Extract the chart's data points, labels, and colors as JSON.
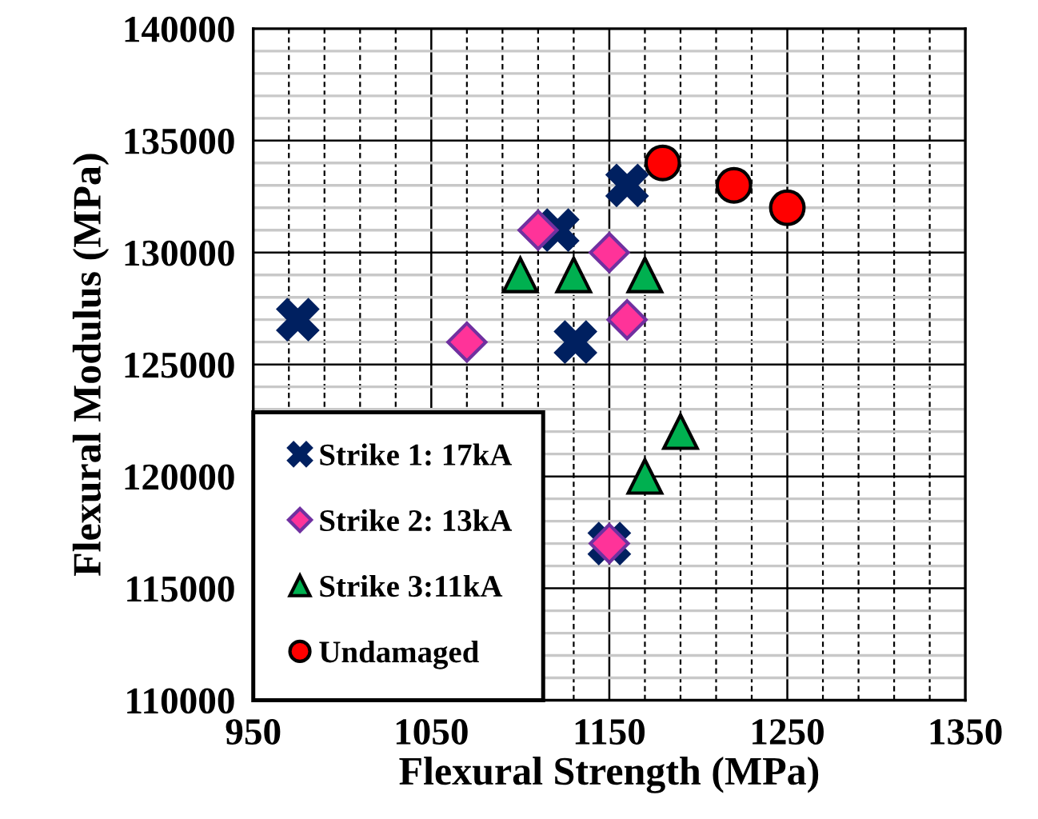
{
  "chart_data": {
    "type": "scatter",
    "xlabel": "Flexural Strength (MPa)",
    "ylabel": "Flexural Modulus (MPa)",
    "xlim": [
      950,
      1350
    ],
    "xticks": [
      950,
      1050,
      1150,
      1250,
      1350
    ],
    "ylim": [
      110000,
      140000
    ],
    "yticks": [
      110000,
      115000,
      120000,
      125000,
      130000,
      135000,
      140000
    ],
    "grid": true,
    "legend": "bottom left",
    "series": [
      {
        "name": "Strike 1: 17kA",
        "color": "#002060",
        "marker": "cross",
        "x": [
          975,
          1121,
          1131,
          1160,
          1150
        ],
        "values": [
          127000,
          131000,
          126000,
          133000,
          117000
        ]
      },
      {
        "name": "Strike 2: 13kA",
        "color": "#ff3399",
        "marker": "diamond",
        "x": [
          1070,
          1110,
          1150,
          1160,
          1150
        ],
        "values": [
          126000,
          131000,
          130000,
          127000,
          117000
        ]
      },
      {
        "name": "Strike 3:11kA",
        "color": "#00b050",
        "marker": "triangle",
        "x": [
          1100,
          1130,
          1170,
          1170,
          1190
        ],
        "values": [
          129000,
          129000,
          129000,
          120000,
          122000
        ]
      },
      {
        "name": "Undamaged",
        "color": "#ff0000",
        "marker": "circle",
        "x": [
          1180,
          1220,
          1250
        ],
        "values": [
          134000,
          133000,
          132000
        ]
      }
    ]
  }
}
